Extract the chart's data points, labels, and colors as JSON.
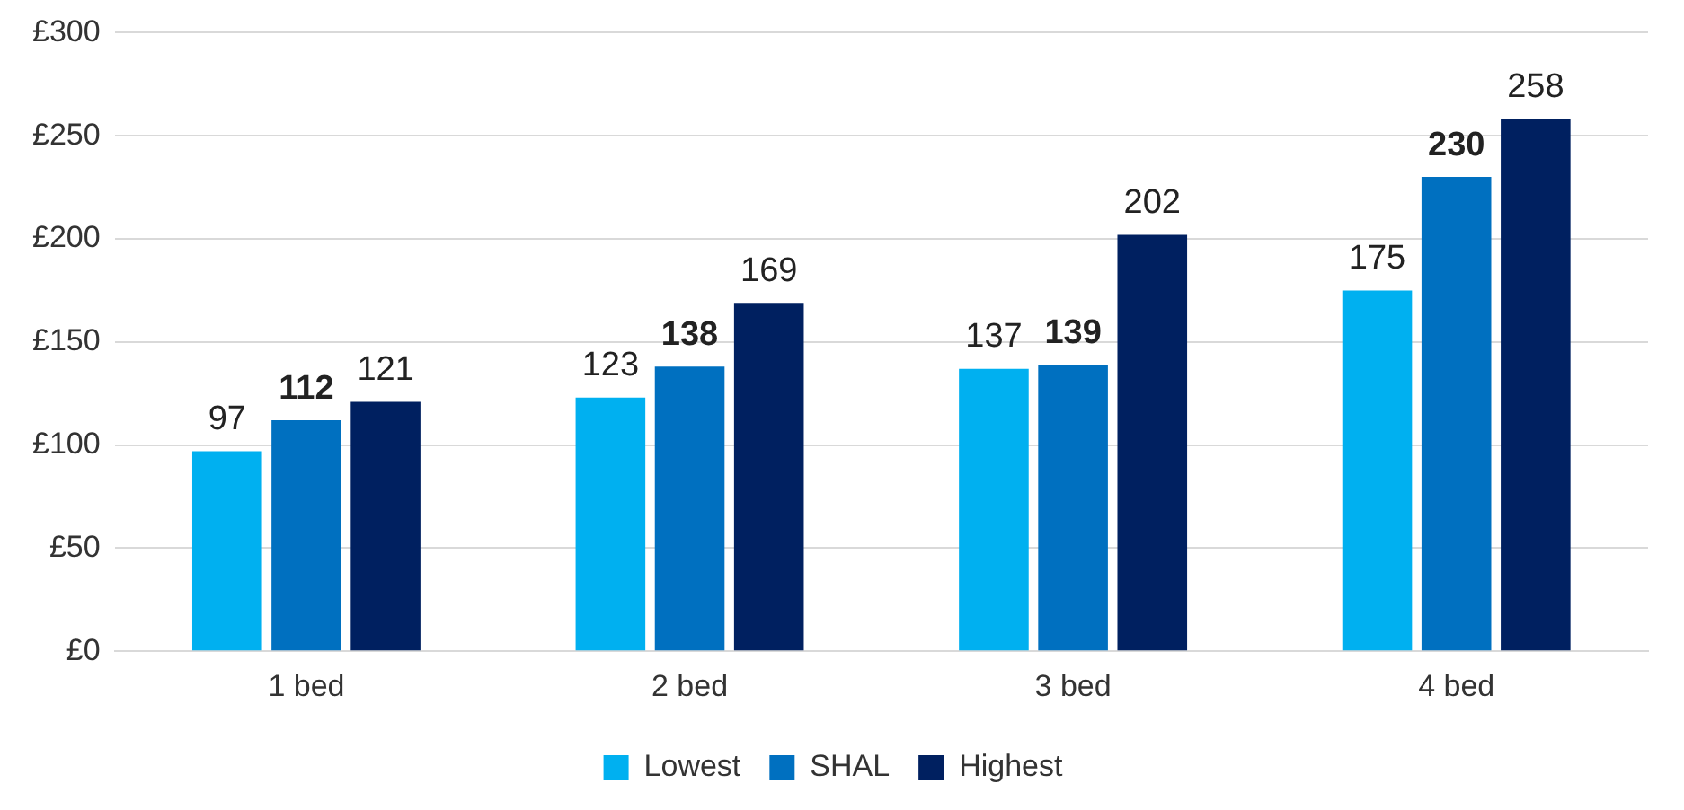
{
  "chart_data": {
    "type": "bar",
    "categories": [
      "1 bed",
      "2 bed",
      "3 bed",
      "4 bed"
    ],
    "series": [
      {
        "name": "Lowest",
        "color": "#00b0f0",
        "values": [
          97,
          123,
          137,
          175
        ]
      },
      {
        "name": "SHAL",
        "color": "#0070c0",
        "values": [
          112,
          138,
          139,
          230
        ]
      },
      {
        "name": "Highest",
        "color": "#002060",
        "values": [
          121,
          169,
          202,
          258
        ]
      }
    ],
    "ylim": [
      0,
      300
    ],
    "yticks": [
      {
        "value": 0,
        "label": "£0"
      },
      {
        "value": 50,
        "label": "£50"
      },
      {
        "value": 100,
        "label": "£100"
      },
      {
        "value": 150,
        "label": "£150"
      },
      {
        "value": 200,
        "label": "£200"
      },
      {
        "value": 250,
        "label": "£250"
      },
      {
        "value": 300,
        "label": "£300"
      }
    ],
    "grid": "y",
    "legend": "bottom",
    "data_labels": true
  }
}
